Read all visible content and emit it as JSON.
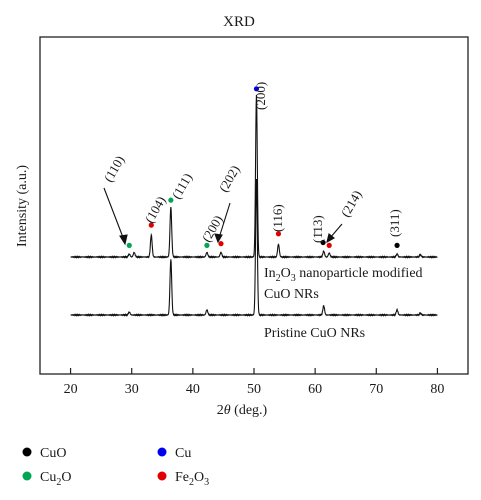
{
  "chart_data": {
    "type": "line",
    "title": "XRD",
    "xlabel": "2θ (deg.)",
    "ylabel": "Intensity (a.u.)",
    "xlim": [
      15,
      85
    ],
    "x_ticks": [
      "20",
      "30",
      "40",
      "50",
      "60",
      "70",
      "80"
    ],
    "y_ticks": [],
    "grid": false,
    "legend_position": "below-plot-left",
    "legend": [
      {
        "name": "CuO",
        "color": "#000000"
      },
      {
        "name": "Cu",
        "color": "#0000ee"
      },
      {
        "name": "Cu2O",
        "color": "#00a651"
      },
      {
        "name": "Fe2O3",
        "color": "#e00000"
      }
    ],
    "series": [
      {
        "name": "In2O3 nanoparticle modified CuO NRs",
        "baseline": 1.0,
        "peaks": [
          {
            "x": 29.6,
            "h": 0.05
          },
          {
            "x": 30.4,
            "h": 0.08
          },
          {
            "x": 33.2,
            "h": 0.38
          },
          {
            "x": 36.4,
            "h": 0.86
          },
          {
            "x": 42.3,
            "h": 0.08
          },
          {
            "x": 44.6,
            "h": 0.08
          },
          {
            "x": 50.4,
            "h": 2.8
          },
          {
            "x": 54.0,
            "h": 0.22
          },
          {
            "x": 61.4,
            "h": 0.1
          },
          {
            "x": 62.3,
            "h": 0.07
          },
          {
            "x": 73.4,
            "h": 0.05
          },
          {
            "x": 77.2,
            "h": 0.04
          }
        ]
      },
      {
        "name": "Pristine CuO NRs",
        "baseline": 0.0,
        "peaks": [
          {
            "x": 29.6,
            "h": 0.05
          },
          {
            "x": 36.4,
            "h": 0.96
          },
          {
            "x": 42.3,
            "h": 0.09
          },
          {
            "x": 50.4,
            "h": 2.35
          },
          {
            "x": 61.4,
            "h": 0.16
          },
          {
            "x": 73.4,
            "h": 0.09
          },
          {
            "x": 77.2,
            "h": 0.03
          }
        ]
      }
    ],
    "markers": [
      {
        "x": 29.6,
        "y": 1.2,
        "phase": "Cu2O",
        "color": "#00a651"
      },
      {
        "x": 33.2,
        "y": 1.55,
        "phase": "Fe2O3",
        "color": "#e00000"
      },
      {
        "x": 36.4,
        "y": 1.98,
        "phase": "Cu2O",
        "color": "#00a651"
      },
      {
        "x": 42.3,
        "y": 1.2,
        "phase": "Cu2O",
        "color": "#00a651"
      },
      {
        "x": 44.6,
        "y": 1.23,
        "phase": "Fe2O3",
        "color": "#e00000"
      },
      {
        "x": 50.4,
        "y": 3.9,
        "phase": "Cu",
        "color": "#0000ee"
      },
      {
        "x": 54.0,
        "y": 1.4,
        "phase": "Fe2O3",
        "color": "#e00000"
      },
      {
        "x": 61.3,
        "y": 1.25,
        "phase": "CuO",
        "color": "#000000"
      },
      {
        "x": 62.3,
        "y": 1.2,
        "phase": "Fe2O3",
        "color": "#e00000"
      },
      {
        "x": 73.4,
        "y": 1.2,
        "phase": "CuO",
        "color": "#000000"
      }
    ],
    "annotations": [
      "(110)",
      "(104)",
      "(111)",
      "(200)",
      "(202)",
      "(200)",
      "(116)",
      "(1̄13)",
      "(214)",
      "(311)"
    ],
    "series_labels": {
      "modified_line1": "In2O3 nanoparticle modified",
      "modified_line2": "CuO NRs",
      "pristine": "Pristine CuO NRs"
    }
  }
}
